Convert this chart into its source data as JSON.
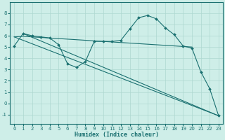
{
  "xlabel": "Humidex (Indice chaleur)",
  "xlim": [
    -0.5,
    23.5
  ],
  "ylim": [
    -1.8,
    9.0
  ],
  "yticks": [
    -1,
    0,
    1,
    2,
    3,
    4,
    5,
    6,
    7,
    8
  ],
  "xticks": [
    0,
    1,
    2,
    3,
    4,
    5,
    6,
    7,
    8,
    9,
    10,
    11,
    12,
    13,
    14,
    15,
    16,
    17,
    18,
    19,
    20,
    21,
    22,
    23
  ],
  "background_color": "#ceeee8",
  "grid_color": "#aed8d0",
  "line_color": "#1a7070",
  "lines": [
    {
      "x": [
        0,
        1,
        2,
        3,
        4,
        5,
        6,
        7,
        8,
        9,
        10,
        11,
        12,
        13,
        14,
        15,
        16,
        17,
        18,
        19,
        20,
        21,
        22,
        23
      ],
      "y": [
        5.1,
        6.2,
        6.0,
        5.9,
        5.8,
        5.2,
        3.5,
        3.2,
        3.7,
        5.5,
        5.5,
        5.5,
        5.6,
        6.6,
        7.6,
        7.8,
        7.5,
        6.7,
        6.1,
        5.1,
        4.9,
        2.8,
        1.3,
        -1.1
      ],
      "marker": true
    },
    {
      "x": [
        0,
        1,
        2,
        3,
        4,
        5,
        6,
        7,
        8,
        9,
        10,
        11,
        12,
        13,
        14,
        15,
        16,
        17,
        18,
        19,
        20
      ],
      "y": [
        5.9,
        5.95,
        5.9,
        5.85,
        5.8,
        5.75,
        5.7,
        5.65,
        5.6,
        5.55,
        5.5,
        5.45,
        5.4,
        5.35,
        5.3,
        5.25,
        5.2,
        5.15,
        5.1,
        5.05,
        5.0
      ],
      "marker": false
    },
    {
      "x": [
        0,
        23
      ],
      "y": [
        5.9,
        -1.1
      ],
      "marker": false
    },
    {
      "x": [
        1,
        23
      ],
      "y": [
        6.2,
        -1.1
      ],
      "marker": false
    }
  ]
}
